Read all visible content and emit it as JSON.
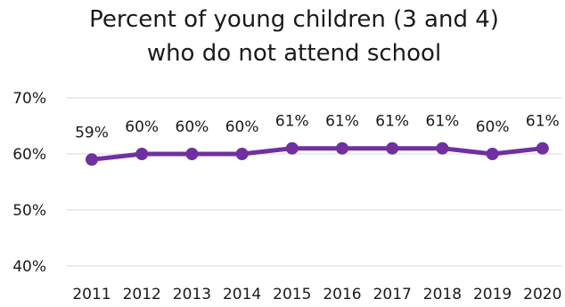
{
  "chart_data": {
    "type": "line",
    "title": [
      "Percent of young children (3 and 4)",
      "who do not attend school"
    ],
    "categories": [
      "2011",
      "2012",
      "2013",
      "2014",
      "2015",
      "2016",
      "2017",
      "2018",
      "2019",
      "2020"
    ],
    "series": [
      {
        "values": [
          59,
          60,
          60,
          60,
          61,
          61,
          61,
          61,
          60,
          61
        ],
        "data_labels": [
          "59%",
          "60%",
          "60%",
          "60%",
          "61%",
          "61%",
          "61%",
          "61%",
          "60%",
          "61%"
        ],
        "color": "#7030a0"
      }
    ],
    "ylim": [
      40,
      70
    ],
    "yticks": [
      40,
      50,
      60,
      70
    ],
    "ytick_labels": [
      "40%",
      "50%",
      "60%",
      "70%"
    ],
    "grid": true,
    "legend": false,
    "gridline_color": "#d9d9d9"
  }
}
